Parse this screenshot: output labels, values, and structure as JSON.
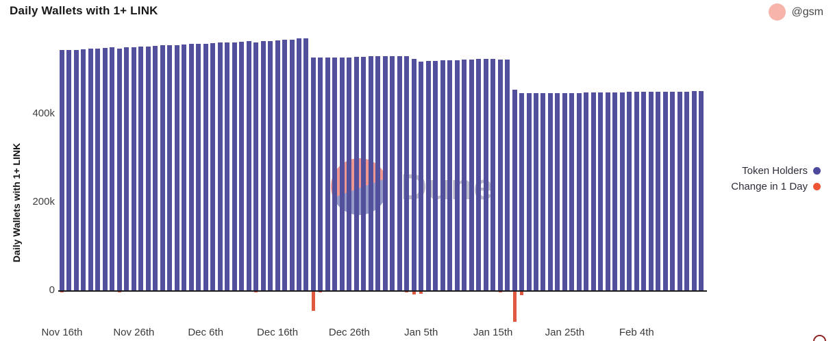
{
  "header": {
    "title": "Daily Wallets with 1+ LINK",
    "user_handle": "@gsm"
  },
  "legend": [
    {
      "label": "Token Holders",
      "color": "#4E4A9B"
    },
    {
      "label": "Change in 1 Day",
      "color": "#EE5534"
    }
  ],
  "watermark": {
    "text": "Dune"
  },
  "chart_data": {
    "type": "bar",
    "title": "Daily Wallets with 1+ LINK",
    "xlabel": "",
    "ylabel": "Daily Wallets with 1+ LINK",
    "units": "wallets (values stored in thousands)",
    "grid": false,
    "legend_position": "right",
    "ylim": [
      0,
      585000
    ],
    "y_ticks": [
      "0",
      "200k",
      "400k"
    ],
    "y_tick_values": [
      0,
      200000,
      400000
    ],
    "x_ticks": [
      "Nov 16th",
      "Nov 26th",
      "Dec 6th",
      "Dec 16th",
      "Dec 26th",
      "Jan 5th",
      "Jan 15th",
      "Jan 25th",
      "Feb 4th"
    ],
    "x_tick_every_days": 10,
    "categories": [
      "Nov 16",
      "Nov 17",
      "Nov 18",
      "Nov 19",
      "Nov 20",
      "Nov 21",
      "Nov 22",
      "Nov 23",
      "Nov 24",
      "Nov 25",
      "Nov 26",
      "Nov 27",
      "Nov 28",
      "Nov 29",
      "Nov 30",
      "Dec 1",
      "Dec 2",
      "Dec 3",
      "Dec 4",
      "Dec 5",
      "Dec 6",
      "Dec 7",
      "Dec 8",
      "Dec 9",
      "Dec 10",
      "Dec 11",
      "Dec 12",
      "Dec 13",
      "Dec 14",
      "Dec 15",
      "Dec 16",
      "Dec 17",
      "Dec 18",
      "Dec 19",
      "Dec 20",
      "Dec 21",
      "Dec 22",
      "Dec 23",
      "Dec 24",
      "Dec 25",
      "Dec 26",
      "Dec 27",
      "Dec 28",
      "Dec 29",
      "Dec 30",
      "Dec 31",
      "Jan 1",
      "Jan 2",
      "Jan 3",
      "Jan 4",
      "Jan 5",
      "Jan 6",
      "Jan 7",
      "Jan 8",
      "Jan 9",
      "Jan 10",
      "Jan 11",
      "Jan 12",
      "Jan 13",
      "Jan 14",
      "Jan 15",
      "Jan 16",
      "Jan 17",
      "Jan 18",
      "Jan 19",
      "Jan 20",
      "Jan 21",
      "Jan 22",
      "Jan 23",
      "Jan 24",
      "Jan 25",
      "Jan 26",
      "Jan 27",
      "Jan 28",
      "Jan 29",
      "Jan 30",
      "Jan 31",
      "Feb 1",
      "Feb 2",
      "Feb 3",
      "Feb 4",
      "Feb 5",
      "Feb 6",
      "Feb 7",
      "Feb 8",
      "Feb 9",
      "Feb 10",
      "Feb 11",
      "Feb 12",
      "Feb 13"
    ],
    "series": [
      {
        "name": "Token Holders",
        "color": "#524F9C",
        "values_k": [
          541,
          541,
          542,
          543,
          544,
          545,
          546,
          547,
          545,
          547,
          548,
          549,
          550,
          551,
          552,
          553,
          553,
          554,
          555,
          556,
          556,
          557,
          558,
          558,
          559,
          560,
          561,
          559,
          561,
          562,
          563,
          564,
          565,
          567,
          568,
          525,
          524,
          524,
          524,
          525,
          525,
          526,
          526,
          527,
          527,
          528,
          528,
          528,
          527,
          521,
          516,
          517,
          517,
          518,
          518,
          519,
          520,
          520,
          521,
          521,
          521,
          520,
          520,
          452,
          444,
          444,
          444,
          444,
          445,
          445,
          445,
          445,
          445,
          446,
          446,
          446,
          446,
          446,
          446,
          447,
          447,
          447,
          447,
          447,
          448,
          448,
          448,
          448,
          449,
          449
        ]
      },
      {
        "name": "Change in 1 Day",
        "color": "#DF5940",
        "values_k": [
          -2,
          0,
          1,
          1,
          1,
          1,
          1,
          1,
          -2,
          2,
          1,
          1,
          1,
          1,
          1,
          1,
          0,
          1,
          1,
          1,
          0,
          1,
          1,
          0,
          1,
          1,
          1,
          -2,
          2,
          1,
          1,
          1,
          1,
          2,
          1,
          -43,
          -1,
          0,
          0,
          1,
          0,
          1,
          0,
          1,
          0,
          1,
          0,
          0,
          -1,
          -6,
          -5,
          1,
          0,
          1,
          0,
          1,
          1,
          0,
          1,
          0,
          0,
          -1,
          0,
          -68,
          -8,
          0,
          0,
          0,
          1,
          0,
          0,
          0,
          0,
          1,
          0,
          0,
          0,
          0,
          0,
          1,
          0,
          0,
          0,
          0,
          1,
          0,
          0,
          0,
          1,
          0
        ]
      }
    ]
  },
  "footer": {
    "alert_icon": "alert-circle-icon"
  }
}
